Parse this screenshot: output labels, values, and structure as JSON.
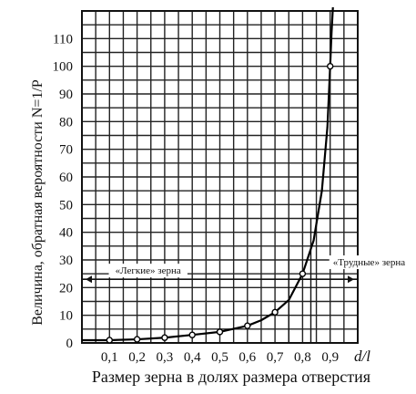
{
  "chart_data": {
    "type": "line",
    "title": "",
    "ylabel": "Величина, обратная вероятности N=1/P",
    "xlabel": "Размер зерна в долях размера отверстия",
    "x_axis_symbol": "d/l",
    "xlim": [
      0,
      1
    ],
    "ylim": [
      0,
      120
    ],
    "x_ticks": [
      0.1,
      0.2,
      0.3,
      0.4,
      0.5,
      0.6,
      0.7,
      0.8,
      0.9
    ],
    "x_tick_labels": [
      "0,1",
      "0,2",
      "0,3",
      "0,4",
      "0,5",
      "0,6",
      "0,7",
      "0,8",
      "0,9"
    ],
    "y_ticks": [
      0,
      10,
      20,
      30,
      40,
      50,
      60,
      70,
      80,
      90,
      100,
      110
    ],
    "y_tick_labels": [
      "0",
      "10",
      "20",
      "30",
      "40",
      "50",
      "60",
      "70",
      "80",
      "90",
      "100",
      "110"
    ],
    "grid": true,
    "series": [
      {
        "x": [
          0.1,
          0.2,
          0.3,
          0.4,
          0.5,
          0.6,
          0.7,
          0.8,
          0.9
        ],
        "y": [
          1.0,
          1.3,
          1.9,
          2.9,
          4.0,
          6.2,
          11.1,
          25,
          100
        ],
        "curve": [
          [
            0.0,
            1.0
          ],
          [
            0.1,
            1.0
          ],
          [
            0.2,
            1.3
          ],
          [
            0.3,
            1.9
          ],
          [
            0.4,
            2.9
          ],
          [
            0.5,
            4.0
          ],
          [
            0.6,
            6.2
          ],
          [
            0.65,
            8.2
          ],
          [
            0.7,
            11.1
          ],
          [
            0.75,
            15.5
          ],
          [
            0.8,
            25
          ],
          [
            0.84,
            37
          ],
          [
            0.87,
            55
          ],
          [
            0.89,
            78
          ],
          [
            0.9,
            100
          ],
          [
            0.905,
            112
          ],
          [
            0.91,
            125
          ]
        ]
      }
    ],
    "annotations": [
      {
        "text": "«Легкие» зерна",
        "x": 0.24,
        "y": 25
      },
      {
        "text": "«Трудные» зерна",
        "x": 0.91,
        "y": 28
      }
    ],
    "reference_lines": {
      "horizontal_y": 23,
      "vertical_x": [
        0.75,
        0.83
      ]
    }
  }
}
